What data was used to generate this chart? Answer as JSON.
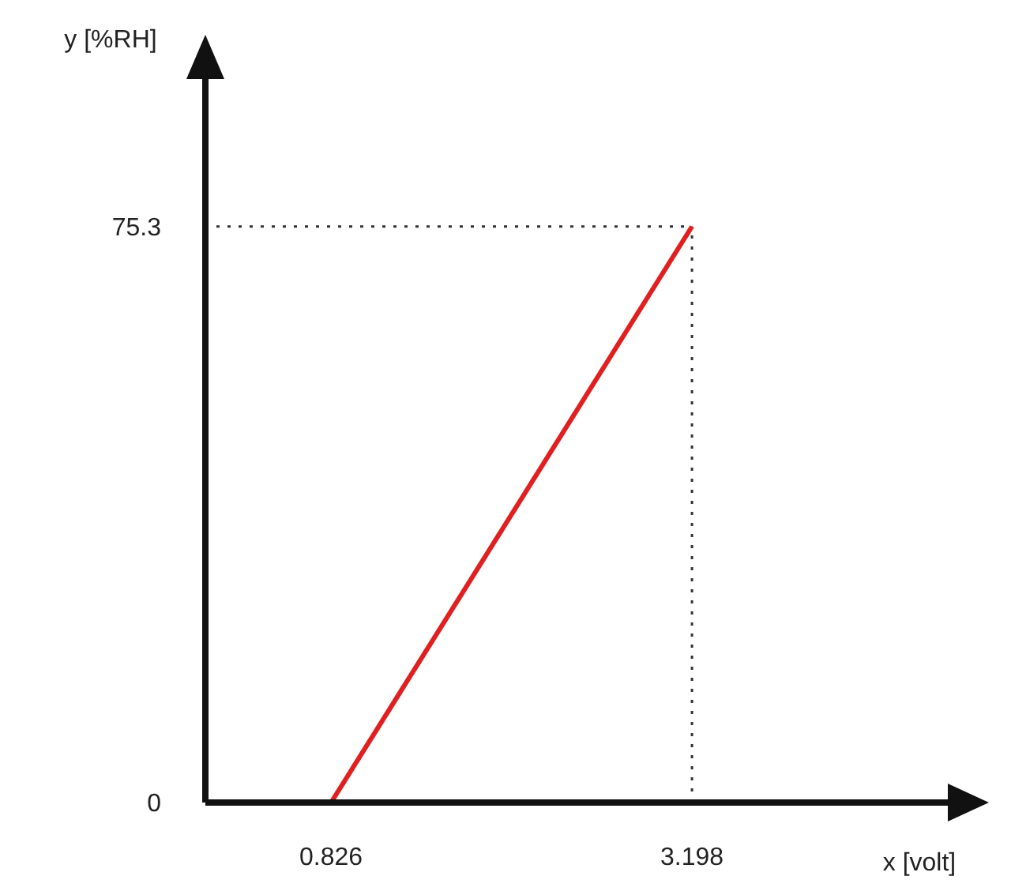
{
  "chart_data": {
    "type": "line",
    "xlabel": "x [volt]",
    "ylabel": "y [%RH]",
    "x": [
      0.826,
      3.198
    ],
    "series": [
      {
        "color": "#e02020",
        "values": [
          0,
          75.3
        ]
      }
    ],
    "xlim": [
      0,
      4.9
    ],
    "ylim": [
      0,
      95
    ],
    "xticks": [
      0.826,
      3.198
    ],
    "yticks": [
      0,
      75.3
    ],
    "ref_lines": [
      {
        "axis": "y",
        "value": 75.3,
        "color": "#333333",
        "line_style": "dotted"
      },
      {
        "axis": "x",
        "value": 3.198,
        "color": "#333333",
        "line_style": "dotted"
      }
    ],
    "marker": "none",
    "line_style": "solid"
  }
}
